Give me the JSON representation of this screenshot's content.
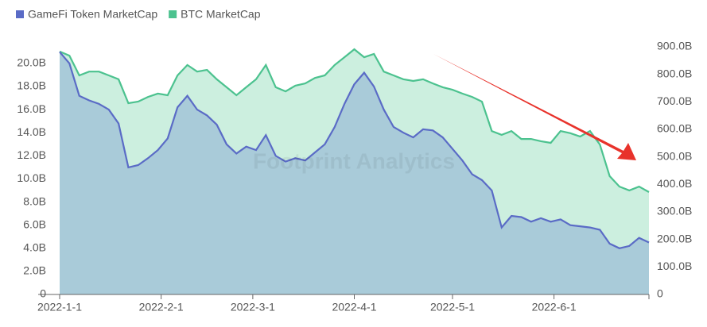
{
  "chart_data": {
    "type": "area",
    "watermark": "Footprint Analytics",
    "x": [
      "2022-1-1",
      "2022-1-4",
      "2022-1-7",
      "2022-1-10",
      "2022-1-13",
      "2022-1-16",
      "2022-1-19",
      "2022-1-22",
      "2022-1-25",
      "2022-1-28",
      "2022-1-31",
      "2022-2-3",
      "2022-2-6",
      "2022-2-9",
      "2022-2-12",
      "2022-2-15",
      "2022-2-18",
      "2022-2-21",
      "2022-2-24",
      "2022-2-27",
      "2022-3-2",
      "2022-3-5",
      "2022-3-8",
      "2022-3-11",
      "2022-3-14",
      "2022-3-17",
      "2022-3-20",
      "2022-3-23",
      "2022-3-26",
      "2022-3-29",
      "2022-4-1",
      "2022-4-4",
      "2022-4-7",
      "2022-4-10",
      "2022-4-13",
      "2022-4-16",
      "2022-4-19",
      "2022-4-22",
      "2022-4-25",
      "2022-4-28",
      "2022-5-1",
      "2022-5-4",
      "2022-5-7",
      "2022-5-10",
      "2022-5-13",
      "2022-5-16",
      "2022-5-19",
      "2022-5-22",
      "2022-5-25",
      "2022-5-28",
      "2022-5-31",
      "2022-6-3",
      "2022-6-6",
      "2022-6-9",
      "2022-6-12",
      "2022-6-15",
      "2022-6-18",
      "2022-6-21",
      "2022-6-24",
      "2022-6-27",
      "2022-6-30"
    ],
    "series": [
      {
        "name": "GameFi Token MarketCap",
        "color": "#5a6bc6",
        "fill": "#a7c8d8",
        "values": [
          21.0,
          20.0,
          17.2,
          16.8,
          16.5,
          16.0,
          14.8,
          11.0,
          11.2,
          11.8,
          12.5,
          13.5,
          16.2,
          17.2,
          16.0,
          15.5,
          14.7,
          13.0,
          12.2,
          12.8,
          12.5,
          13.8,
          12.0,
          11.5,
          11.8,
          11.6,
          12.3,
          13.0,
          14.5,
          16.5,
          18.2,
          19.2,
          18.0,
          16.0,
          14.5,
          14.0,
          13.6,
          14.3,
          14.2,
          13.6,
          12.6,
          11.6,
          10.4,
          9.9,
          9.0,
          5.8,
          6.8,
          6.7,
          6.3,
          6.6,
          6.3,
          6.5,
          6.0,
          5.9,
          5.8,
          5.6,
          4.4,
          4.0,
          4.2,
          4.9,
          4.5
        ]
      },
      {
        "name": "BTC MarketCap",
        "color": "#4cc28f",
        "fill": "#c9eedd",
        "axis": "y2",
        "values": [
          883,
          868,
          796,
          810,
          810,
          796,
          782,
          695,
          701,
          718,
          730,
          724,
          796,
          834,
          810,
          816,
          782,
          753,
          724,
          753,
          782,
          834,
          753,
          738,
          759,
          767,
          787,
          796,
          834,
          862,
          891,
          862,
          874,
          810,
          796,
          782,
          776,
          782,
          767,
          753,
          744,
          730,
          718,
          701,
          594,
          580,
          594,
          565,
          565,
          557,
          551,
          594,
          586,
          574,
          594,
          545,
          430,
          392,
          378,
          392,
          372
        ]
      }
    ],
    "xlim": [
      "2022-1-1",
      "2022-6-30"
    ],
    "xticks": [
      "2022-1-1",
      "2022-2-1",
      "2022-3-1",
      "2022-4-1",
      "2022-5-1",
      "2022-6-1"
    ],
    "ylim": [
      0,
      21.3
    ],
    "yticks": [
      0,
      {
        "value": 2,
        "label": "2.0B"
      },
      {
        "value": 4,
        "label": "4.0B"
      },
      {
        "value": 6,
        "label": "6.0B"
      },
      {
        "value": 8,
        "label": "8.0B"
      },
      {
        "value": 10,
        "label": "10.0B"
      },
      {
        "value": 12,
        "label": "12.0B"
      },
      {
        "value": 14,
        "label": "14.0B"
      },
      {
        "value": 16,
        "label": "16.0B"
      },
      {
        "value": 18,
        "label": "18.0B"
      },
      {
        "value": 20,
        "label": "20.0B"
      }
    ],
    "y2lim": [
      0,
      923
    ],
    "y2ticks": [
      0,
      {
        "value": 100,
        "label": "100.0B"
      },
      {
        "value": 200,
        "label": "200.0B"
      },
      {
        "value": 300,
        "label": "300.0B"
      },
      {
        "value": 400,
        "label": "400.0B"
      },
      {
        "value": 500,
        "label": "500.0B"
      },
      {
        "value": 600,
        "label": "600.0B"
      },
      {
        "value": 700,
        "label": "700.0B"
      },
      {
        "value": 800,
        "label": "800.0B"
      },
      {
        "value": 900,
        "label": "900.0B"
      }
    ]
  }
}
